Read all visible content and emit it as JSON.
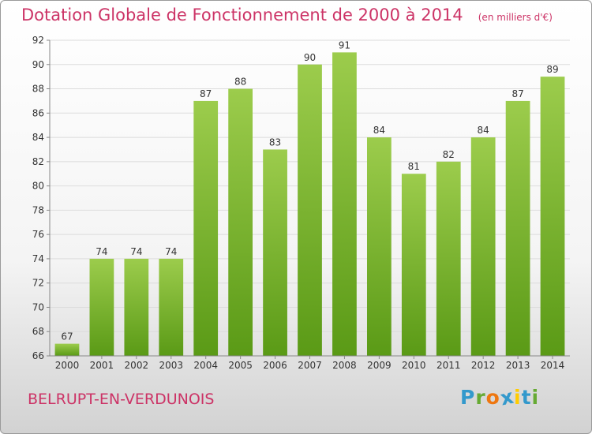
{
  "chart_data": {
    "type": "bar",
    "title": "Dotation Globale de Fonctionnement de 2000 à 2014",
    "subtitle": "(en milliers d'€)",
    "categories": [
      "2000",
      "2001",
      "2002",
      "2003",
      "2004",
      "2005",
      "2006",
      "2007",
      "2008",
      "2009",
      "2010",
      "2011",
      "2012",
      "2013",
      "2014"
    ],
    "values": [
      67,
      74,
      74,
      74,
      87,
      88,
      83,
      90,
      91,
      84,
      81,
      82,
      84,
      87,
      89
    ],
    "ylim": [
      66,
      92
    ],
    "yticks": [
      66,
      68,
      70,
      72,
      74,
      76,
      78,
      80,
      82,
      84,
      86,
      88,
      90,
      92
    ],
    "xlabel": "",
    "ylabel": "",
    "grid": true,
    "bar_color_top": "#9ccc4c",
    "bar_color_bottom": "#5a9a16"
  },
  "footer": {
    "commune": "BELRUPT-EN-VERDUNOIS",
    "logo_text": "Proxiti",
    "logo_colors": [
      "#3399cc",
      "#66aa33",
      "#ee7711",
      "#3399cc",
      "#ffcc00",
      "#3399cc",
      "#66aa33"
    ]
  }
}
